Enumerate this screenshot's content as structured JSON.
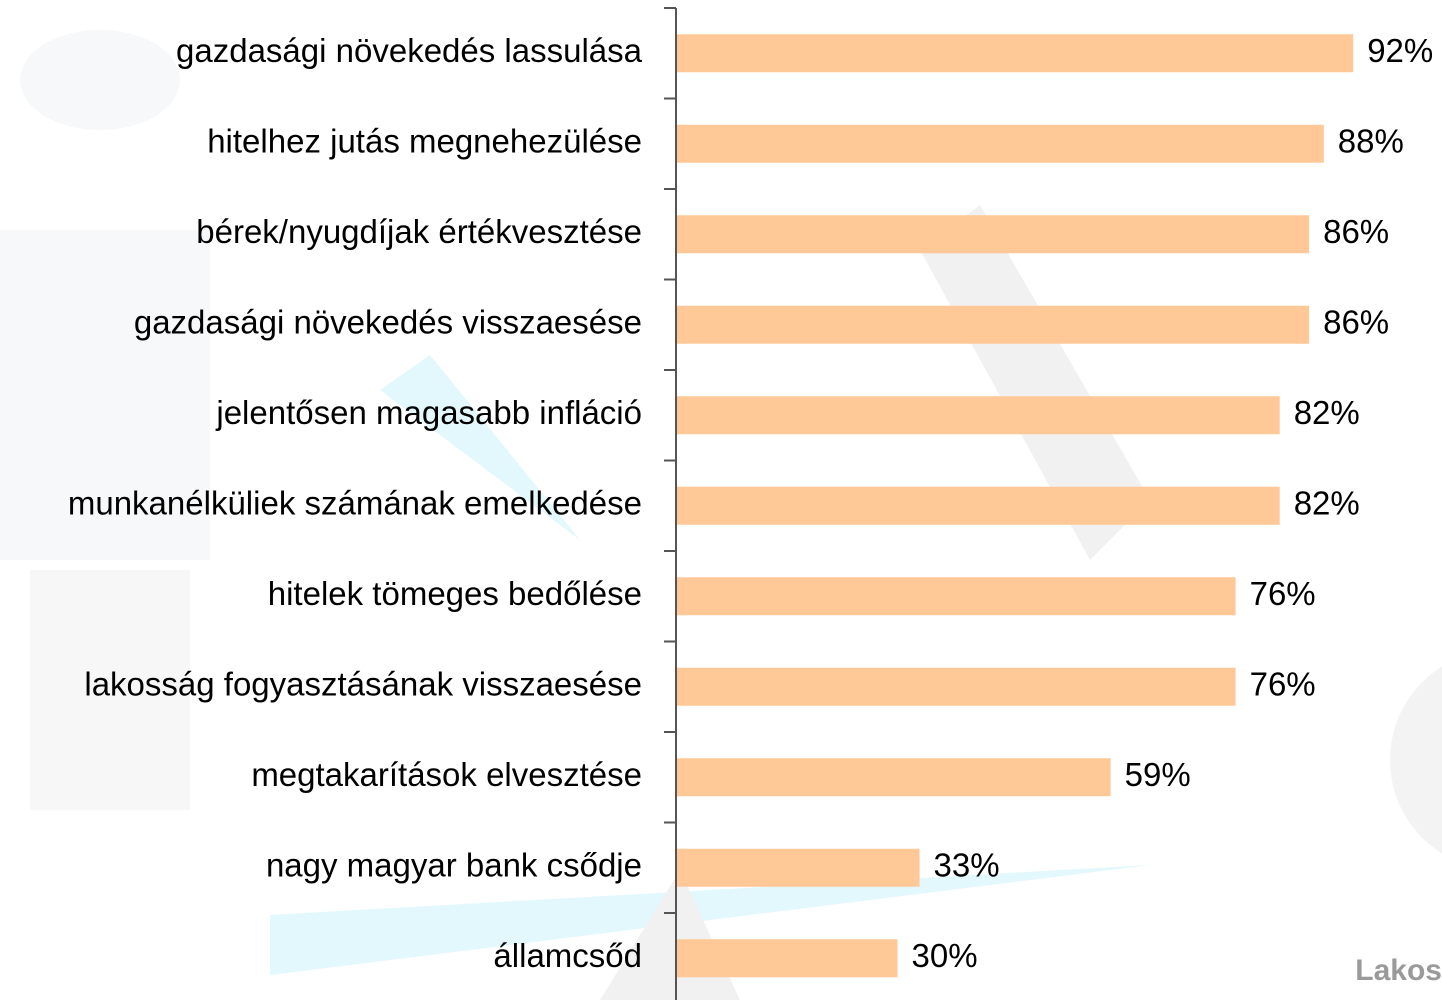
{
  "chart_data": {
    "type": "bar",
    "orientation": "horizontal",
    "categories": [
      "gazdasági növekedés lassulása",
      "hitelhez jutás megnehezülése",
      "bérek/nyugdíjak értékvesztése",
      "gazdasági növekedés visszaesése",
      "jelentősen magasabb infláció",
      "munkanélküliek számának emelkedése",
      "hitelek tömeges bedőlése",
      "lakosság fogyasztásának visszaesése",
      "megtakarítások elvesztése",
      "nagy magyar bank csődje",
      "államcsőd"
    ],
    "values": [
      92,
      88,
      86,
      86,
      82,
      82,
      76,
      76,
      59,
      33,
      30
    ],
    "value_labels": [
      "92%",
      "88%",
      "86%",
      "86%",
      "82%",
      "82%",
      "76%",
      "76%",
      "59%",
      "33%",
      "30%"
    ],
    "color": "#ffc896",
    "watermark": "Lakos"
  }
}
